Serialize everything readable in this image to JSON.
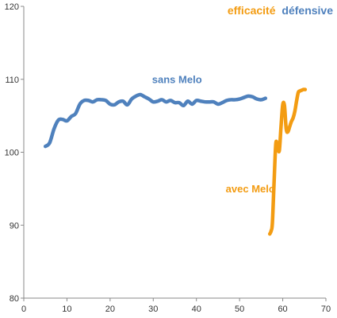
{
  "chart_data": {
    "type": "line",
    "title": {
      "part1": "efficacité",
      "part2": "défensive",
      "part1_color": "#f39c12",
      "part2_color": "#4f81bd"
    },
    "xlim": [
      0,
      70
    ],
    "ylim": [
      80,
      120
    ],
    "x_ticks": [
      0,
      10,
      20,
      30,
      40,
      50,
      60,
      70
    ],
    "y_ticks": [
      80,
      90,
      100,
      110,
      120
    ],
    "grid": false,
    "series": [
      {
        "name": "sans Melo",
        "color": "#4f81bd",
        "x": [
          5,
          6,
          7,
          8,
          9,
          10,
          11,
          12,
          13,
          14,
          15,
          16,
          17,
          18,
          19,
          20,
          21,
          22,
          23,
          24,
          25,
          26,
          27,
          28,
          29,
          30,
          31,
          32,
          33,
          34,
          35,
          36,
          37,
          38,
          39,
          40,
          41,
          42,
          43,
          44,
          45,
          46,
          47,
          48,
          49,
          50,
          51,
          52,
          53,
          54,
          55,
          56
        ],
        "values": [
          100.8,
          101.3,
          103.2,
          104.4,
          104.5,
          104.3,
          104.9,
          105.3,
          106.6,
          107.1,
          107.1,
          106.9,
          107.2,
          107.2,
          107.1,
          106.6,
          106.5,
          106.9,
          107.0,
          106.5,
          107.3,
          107.7,
          107.9,
          107.6,
          107.3,
          106.9,
          107.0,
          107.2,
          106.9,
          107.1,
          106.8,
          106.8,
          106.4,
          107.0,
          106.6,
          107.1,
          107.0,
          106.9,
          106.9,
          106.9,
          106.6,
          106.8,
          107.1,
          107.2,
          107.2,
          107.3,
          107.5,
          107.7,
          107.6,
          107.3,
          107.2,
          107.4
        ]
      },
      {
        "name": "avec Melo",
        "color": "#f39c12",
        "x": [
          57.0,
          57.3,
          57.6,
          58.0,
          58.4,
          58.8,
          59.2,
          59.6,
          60.0,
          60.4,
          60.8,
          61.2,
          61.6,
          62.0,
          62.4,
          62.8,
          63.2,
          63.6,
          64.0,
          64.4,
          64.8,
          65.2
        ],
        "values": [
          88.8,
          89.2,
          90.3,
          96.0,
          101.2,
          100.8,
          100.2,
          103.5,
          106.5,
          106.4,
          103.2,
          102.8,
          103.5,
          104.2,
          104.7,
          105.6,
          107.0,
          108.2,
          108.4,
          108.5,
          108.6,
          108.6
        ]
      }
    ],
    "annotations": [
      {
        "text": "sans Melo",
        "color": "#4f81bd",
        "x": 35.5,
        "y": 109.5
      },
      {
        "text": "avec Melo",
        "color": "#f39c12",
        "x": 52.5,
        "y": 94.5
      }
    ]
  }
}
